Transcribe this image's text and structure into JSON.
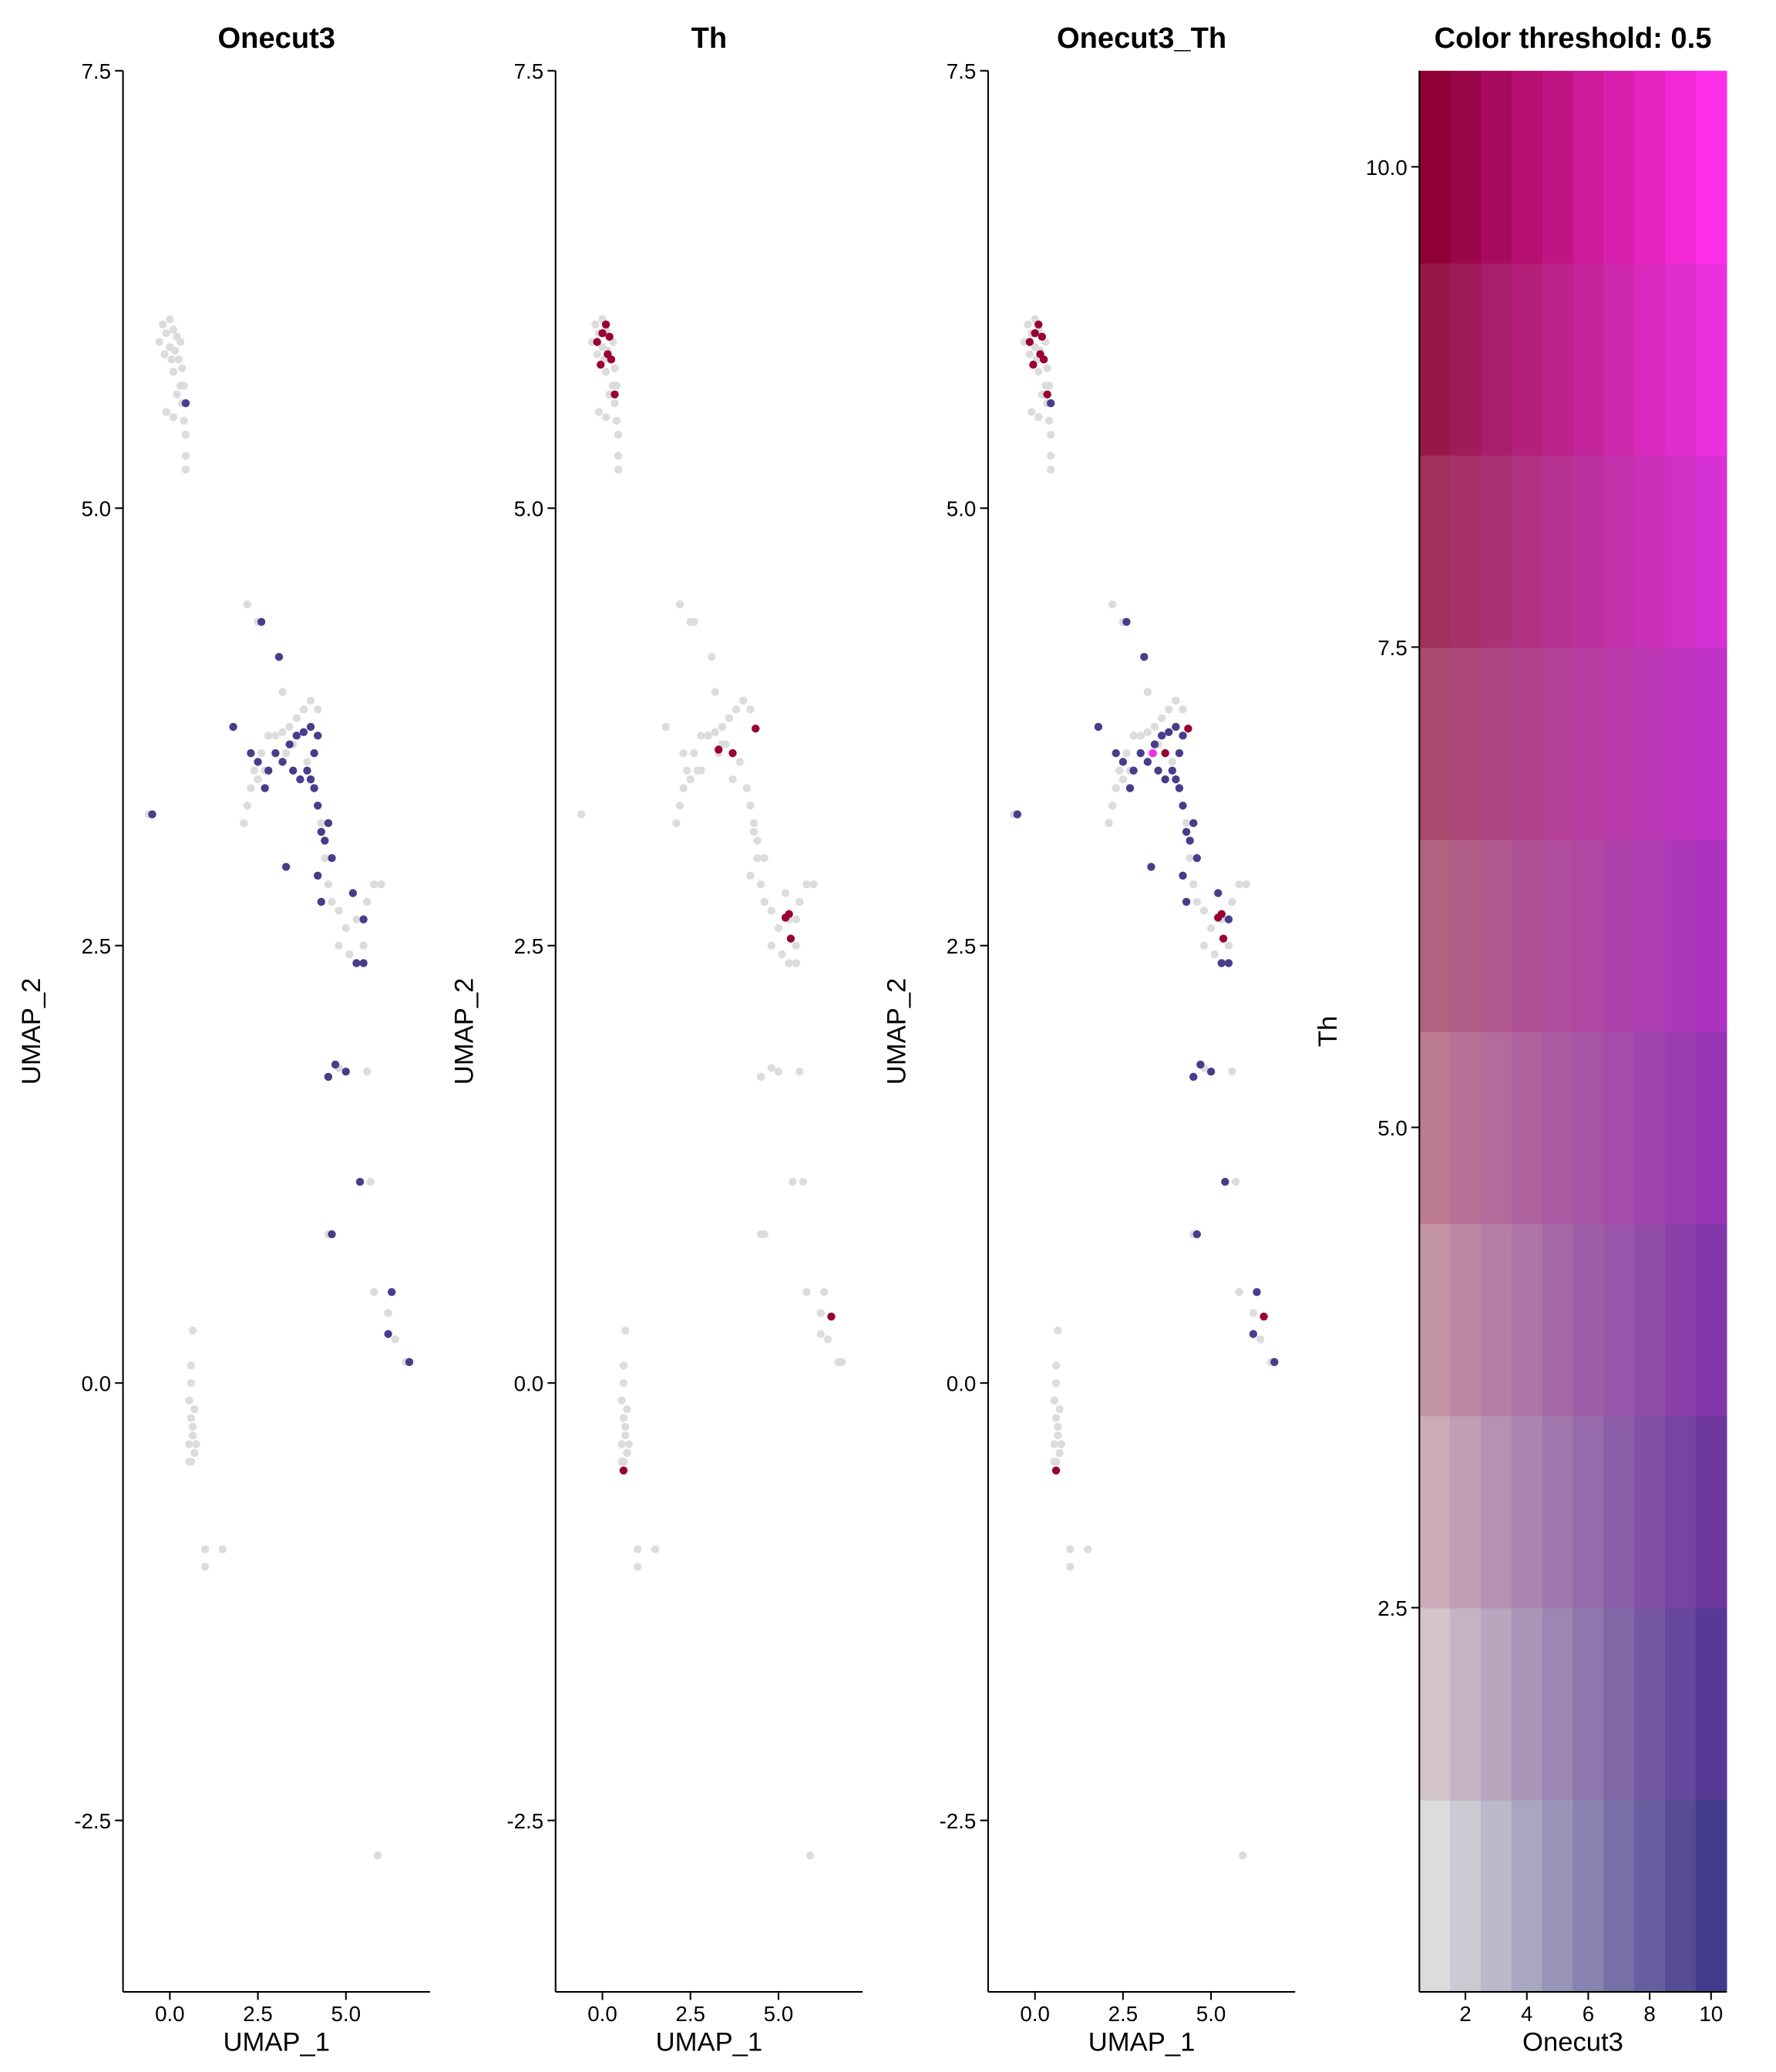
{
  "chart_data": [
    {
      "type": "scatter",
      "title": "Onecut3",
      "xlabel": "UMAP_1",
      "ylabel": "UMAP_2",
      "xlim": [
        -1.33,
        7.39
      ],
      "ylim": [
        -3.48,
        7.5
      ],
      "xticks": [
        {
          "value": 0,
          "label": "0.0"
        },
        2.5,
        {
          "value": 5,
          "label": "5.0"
        }
      ],
      "yticks": [
        -2.5,
        {
          "value": 0,
          "label": "0.0"
        },
        2.5,
        {
          "value": 5,
          "label": "5.0"
        },
        7.5
      ],
      "series": [
        {
          "color": "#dcdcdc",
          "x": [
            -0.2,
            -0.1,
            0,
            0.1,
            0.2,
            -0.3,
            0,
            0.15,
            0.3,
            -0.15,
            0.05,
            0.25,
            0.35,
            0.1,
            0.3,
            0.35,
            0.2,
            0.4,
            -0.1,
            0.1,
            0.45,
            0.45,
            0.45,
            0.4,
            2.2,
            2.5,
            2.2,
            2.1,
            2.3,
            2.4,
            2.6,
            2.8,
            3.0,
            3.2,
            3.4,
            3.6,
            3.8,
            4.0,
            4.2,
            2.5,
            2.7,
            3.3,
            3.5,
            3.9,
            4.3,
            4.4,
            4.5,
            4.6,
            4.8,
            5.0,
            5.3,
            5.6,
            5.8,
            6.0,
            5.5,
            5.1,
            4.8,
            3.2,
            4.8,
            5.6,
            5.8,
            6.2,
            6.7,
            5.7,
            4.5,
            6.4,
            -0.6,
            0.65,
            0.6,
            0.55,
            0.6,
            0.65,
            0.55,
            0.7,
            0.6,
            0.75,
            0.65,
            0.7,
            0.6,
            0.55,
            1.0,
            1.0,
            1.5,
            5.9
          ],
          "values": [
            6.05,
            6.0,
            6.08,
            6.02,
            5.98,
            5.95,
            5.92,
            5.9,
            5.95,
            5.88,
            5.85,
            5.85,
            5.8,
            5.78,
            5.7,
            5.6,
            5.65,
            5.5,
            5.55,
            5.52,
            5.42,
            5.3,
            5.22,
            5.7,
            4.45,
            4.35,
            3.3,
            3.2,
            3.4,
            3.5,
            3.6,
            3.7,
            3.7,
            3.72,
            3.75,
            3.8,
            3.85,
            3.9,
            3.85,
            3.45,
            3.5,
            3.6,
            3.65,
            3.55,
            3.2,
            3.0,
            2.85,
            2.75,
            2.7,
            2.6,
            2.65,
            2.75,
            2.85,
            2.85,
            2.5,
            2.45,
            2.5,
            3.95,
            1.8,
            1.78,
            0.52,
            0.4,
            0.12,
            1.15,
            0.85,
            0.25,
            3.25,
            0.3,
            0.1,
            -0.1,
            -0.2,
            -0.3,
            -0.35,
            -0.4,
            -0.45,
            -0.35,
            -0.25,
            -0.15,
            0.0,
            -0.45,
            -0.95,
            -1.05,
            -0.95,
            -2.7
          ]
        },
        {
          "color": "#483d8b",
          "x": [
            1.8,
            2.6,
            3.1,
            -0.5,
            2.3,
            2.5,
            2.8,
            3.0,
            3.2,
            3.4,
            3.6,
            3.8,
            4.0,
            4.2,
            3.9,
            4.1,
            4.2,
            4.3,
            4.4,
            4.5,
            4.6,
            4.1,
            4.0,
            3.5,
            3.7,
            3.3,
            4.2,
            4.3,
            5.2,
            5.5,
            5.3,
            5.5,
            4.7,
            4.5,
            5.0,
            5.4,
            4.6,
            6.3,
            6.2,
            6.8,
            2.7,
            0.45
          ],
          "values": [
            3.75,
            4.35,
            4.15,
            3.25,
            3.6,
            3.55,
            3.5,
            3.6,
            3.55,
            3.65,
            3.7,
            3.72,
            3.75,
            3.7,
            3.5,
            3.4,
            3.3,
            3.15,
            3.1,
            3.2,
            3.0,
            3.6,
            3.45,
            3.5,
            3.45,
            2.95,
            2.9,
            2.75,
            2.8,
            2.65,
            2.4,
            2.4,
            1.82,
            1.75,
            1.78,
            1.15,
            0.85,
            0.52,
            0.28,
            0.12,
            3.4,
            5.6
          ]
        }
      ]
    },
    {
      "type": "scatter",
      "title": "Th",
      "xlabel": "UMAP_1",
      "ylabel": "UMAP_2",
      "xlim": [
        -1.33,
        7.39
      ],
      "ylim": [
        -3.48,
        7.5
      ],
      "xticks": [
        {
          "value": 0,
          "label": "0.0"
        },
        2.5,
        {
          "value": 5,
          "label": "5.0"
        }
      ],
      "yticks": [
        -2.5,
        {
          "value": 0,
          "label": "0.0"
        },
        2.5,
        {
          "value": 5,
          "label": "5.0"
        },
        7.5
      ],
      "series": [
        {
          "color": "#dcdcdc",
          "x": [
            -0.2,
            -0.1,
            0,
            0.1,
            0.2,
            -0.3,
            0,
            0.15,
            0.3,
            -0.15,
            0.05,
            0.25,
            0.35,
            0.1,
            0.3,
            0.35,
            0.2,
            0.4,
            -0.1,
            0.1,
            0.45,
            0.45,
            0.45,
            0.4,
            2.2,
            2.5,
            2.2,
            2.1,
            2.3,
            2.4,
            2.6,
            2.8,
            3.0,
            3.2,
            3.4,
            3.6,
            3.8,
            4.0,
            4.2,
            2.5,
            2.7,
            3.3,
            3.5,
            3.9,
            4.3,
            4.4,
            4.5,
            4.6,
            4.8,
            5.0,
            5.3,
            5.6,
            5.8,
            6.0,
            5.5,
            5.1,
            4.8,
            3.2,
            4.8,
            5.6,
            5.8,
            6.2,
            6.7,
            5.7,
            4.5,
            6.4,
            -0.6,
            0.65,
            0.6,
            0.55,
            0.6,
            0.65,
            0.55,
            0.7,
            0.6,
            0.75,
            0.65,
            0.7,
            0.6,
            0.55,
            1.0,
            1.0,
            1.5,
            5.9,
            1.8,
            2.6,
            3.1,
            2.3,
            2.8,
            3.4,
            4.1,
            4.2,
            4.3,
            4.4,
            4.6,
            3.7,
            4.2,
            5.2,
            5.5,
            5.3,
            5.5,
            4.5,
            5.0,
            5.4,
            4.6,
            6.3,
            6.2,
            6.8
          ],
          "values": [
            6.05,
            6.0,
            6.08,
            6.02,
            5.98,
            5.95,
            5.92,
            5.9,
            5.95,
            5.88,
            5.85,
            5.85,
            5.8,
            5.78,
            5.7,
            5.6,
            5.65,
            5.5,
            5.55,
            5.52,
            5.42,
            5.3,
            5.22,
            5.7,
            4.45,
            4.35,
            3.3,
            3.2,
            3.4,
            3.5,
            3.6,
            3.7,
            3.7,
            3.72,
            3.75,
            3.8,
            3.85,
            3.9,
            3.85,
            3.45,
            3.5,
            3.6,
            3.65,
            3.55,
            3.2,
            3.0,
            2.85,
            2.75,
            2.7,
            2.6,
            2.65,
            2.75,
            2.85,
            2.85,
            2.5,
            2.45,
            2.5,
            3.95,
            1.8,
            1.78,
            0.52,
            0.4,
            0.12,
            1.15,
            0.85,
            0.25,
            3.25,
            0.3,
            0.1,
            -0.1,
            -0.2,
            -0.3,
            -0.35,
            -0.4,
            -0.45,
            -0.35,
            -0.25,
            -0.15,
            0.0,
            -0.45,
            -0.95,
            -1.05,
            -0.95,
            -2.7,
            3.75,
            4.35,
            4.15,
            3.6,
            3.5,
            3.65,
            3.4,
            3.3,
            3.15,
            3.1,
            3.0,
            3.45,
            2.9,
            2.8,
            2.65,
            2.4,
            2.4,
            1.75,
            1.78,
            1.15,
            0.85,
            0.52,
            0.28,
            0.12
          ]
        },
        {
          "color": "#990033",
          "x": [
            -0.15,
            0,
            0.1,
            0.2,
            0.15,
            -0.05,
            0.25,
            0.35,
            3.3,
            4.35,
            3.7,
            5.2,
            5.35,
            5.3,
            6.5,
            0.6
          ],
          "values": [
            5.95,
            6.0,
            6.05,
            5.98,
            5.88,
            5.82,
            5.85,
            5.65,
            3.62,
            3.74,
            3.6,
            2.66,
            2.54,
            2.68,
            0.38,
            -0.5
          ]
        }
      ]
    },
    {
      "type": "scatter",
      "title": "Onecut3_Th",
      "xlabel": "UMAP_1",
      "ylabel": "UMAP_2",
      "xlim": [
        -1.33,
        7.39
      ],
      "ylim": [
        -3.48,
        7.5
      ],
      "xticks": [
        {
          "value": 0,
          "label": "0.0"
        },
        2.5,
        {
          "value": 5,
          "label": "5.0"
        }
      ],
      "yticks": [
        -2.5,
        {
          "value": 0,
          "label": "0.0"
        },
        2.5,
        {
          "value": 5,
          "label": "5.0"
        },
        7.5
      ],
      "series": [
        {
          "color": "#dcdcdc",
          "x": [
            -0.2,
            -0.1,
            0,
            0.1,
            0.2,
            -0.3,
            0,
            0.15,
            0.3,
            -0.15,
            0.05,
            0.25,
            0.35,
            0.1,
            0.3,
            0.35,
            0.2,
            0.4,
            -0.1,
            0.1,
            0.45,
            0.45,
            0.45,
            0.4,
            2.2,
            2.5,
            2.2,
            2.1,
            2.3,
            2.4,
            2.6,
            2.8,
            3.0,
            3.2,
            3.4,
            3.6,
            3.8,
            4.0,
            4.2,
            2.5,
            2.7,
            3.3,
            3.5,
            3.9,
            4.3,
            4.4,
            4.5,
            4.6,
            4.8,
            5.0,
            5.3,
            5.6,
            5.8,
            6.0,
            5.5,
            5.1,
            4.8,
            3.2,
            4.8,
            5.6,
            5.8,
            6.2,
            6.7,
            5.7,
            4.5,
            6.4,
            -0.6,
            0.65,
            0.6,
            0.55,
            0.6,
            0.65,
            0.55,
            0.7,
            0.6,
            0.75,
            0.65,
            0.7,
            0.6,
            0.55,
            1.0,
            1.0,
            1.5,
            5.9
          ],
          "values": [
            6.05,
            6.0,
            6.08,
            6.02,
            5.98,
            5.95,
            5.92,
            5.9,
            5.95,
            5.88,
            5.85,
            5.85,
            5.8,
            5.78,
            5.7,
            5.6,
            5.65,
            5.5,
            5.55,
            5.52,
            5.42,
            5.3,
            5.22,
            5.7,
            4.45,
            4.35,
            3.3,
            3.2,
            3.4,
            3.5,
            3.6,
            3.7,
            3.7,
            3.72,
            3.75,
            3.8,
            3.85,
            3.9,
            3.85,
            3.45,
            3.5,
            3.6,
            3.65,
            3.55,
            3.2,
            3.0,
            2.85,
            2.75,
            2.7,
            2.6,
            2.65,
            2.75,
            2.85,
            2.85,
            2.5,
            2.45,
            2.5,
            3.95,
            1.8,
            1.78,
            0.52,
            0.4,
            0.12,
            1.15,
            0.85,
            0.25,
            3.25,
            0.3,
            0.1,
            -0.1,
            -0.2,
            -0.3,
            -0.35,
            -0.4,
            -0.45,
            -0.35,
            -0.25,
            -0.15,
            0.0,
            -0.45,
            -0.95,
            -1.05,
            -0.95,
            -2.7
          ]
        },
        {
          "color": "#483d8b",
          "x": [
            1.8,
            2.6,
            3.1,
            -0.5,
            2.3,
            2.5,
            2.8,
            3.0,
            3.2,
            3.4,
            3.6,
            3.8,
            4.0,
            4.2,
            3.9,
            4.1,
            4.2,
            4.3,
            4.4,
            4.5,
            4.6,
            4.1,
            4.0,
            3.5,
            3.7,
            3.3,
            4.2,
            4.3,
            5.2,
            5.5,
            5.3,
            5.5,
            4.7,
            4.5,
            5.0,
            5.4,
            4.6,
            6.3,
            6.2,
            6.8,
            2.7,
            0.45
          ],
          "values": [
            3.75,
            4.35,
            4.15,
            3.25,
            3.6,
            3.55,
            3.5,
            3.6,
            3.55,
            3.65,
            3.7,
            3.72,
            3.75,
            3.7,
            3.5,
            3.4,
            3.3,
            3.15,
            3.1,
            3.2,
            3.0,
            3.6,
            3.45,
            3.5,
            3.45,
            2.95,
            2.9,
            2.75,
            2.8,
            2.65,
            2.4,
            2.4,
            1.82,
            1.75,
            1.78,
            1.15,
            0.85,
            0.52,
            0.28,
            0.12,
            3.4,
            5.6
          ]
        },
        {
          "color": "#990033",
          "x": [
            -0.15,
            0,
            0.1,
            0.2,
            0.15,
            -0.05,
            0.25,
            0.35,
            4.35,
            3.7,
            5.2,
            5.35,
            5.3,
            6.5,
            0.6
          ],
          "values": [
            5.95,
            6.0,
            6.05,
            5.98,
            5.88,
            5.82,
            5.85,
            5.65,
            3.74,
            3.6,
            2.66,
            2.54,
            2.68,
            0.38,
            -0.5
          ]
        },
        {
          "color": "#f030e8",
          "x": [
            3.35
          ],
          "values": [
            3.6
          ]
        }
      ]
    },
    {
      "type": "heatmap",
      "title": "Color threshold: 0.5",
      "xlabel": "Onecut3",
      "ylabel": "Th",
      "x": [
        1,
        2,
        3,
        4,
        5,
        6,
        7,
        8,
        9,
        10
      ],
      "y": [
        1,
        2,
        3,
        4,
        5,
        6,
        7,
        8,
        9,
        10
      ],
      "corner_colors": {
        "low": "#dcdcdc",
        "x_high": "#443a8c",
        "y_high": "#8e0036",
        "both_high": "#ff2ee8"
      },
      "xlim": [
        0.5,
        10.5
      ],
      "ylim": [
        0.5,
        10.5
      ],
      "xticks": [
        2,
        4,
        6,
        8,
        10
      ],
      "yticks": [
        2.5,
        {
          "value": 5,
          "label": "5.0"
        },
        7.5,
        {
          "value": 10,
          "label": "10.0"
        }
      ]
    }
  ]
}
